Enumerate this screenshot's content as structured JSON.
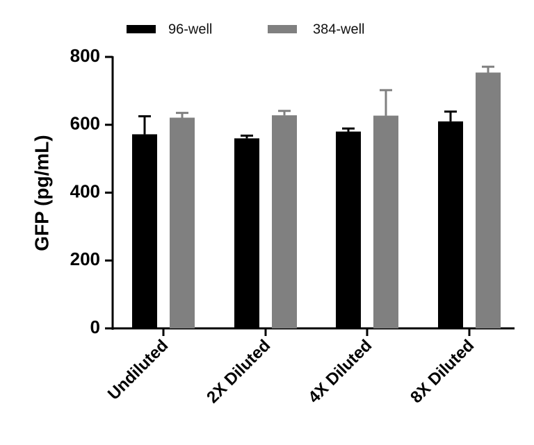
{
  "chart_data": {
    "type": "bar",
    "title": "",
    "xlabel": "",
    "ylabel": "GFP (pg/mL)",
    "ylim": [
      0,
      800
    ],
    "yticks": [
      0,
      200,
      400,
      600,
      800
    ],
    "categories": [
      "Undiluted",
      "2X Diluted",
      "4X Diluted",
      "8X Diluted"
    ],
    "series": [
      {
        "name": "96-well",
        "color": "#000000",
        "values": [
          572,
          560,
          580,
          610
        ],
        "errors": [
          53,
          8,
          9,
          29
        ]
      },
      {
        "name": "384-well",
        "color": "#808080",
        "values": [
          621,
          628,
          627,
          754
        ],
        "errors": [
          14,
          13,
          75,
          17
        ]
      }
    ],
    "legend": {
      "position": "top"
    },
    "grid": false
  }
}
